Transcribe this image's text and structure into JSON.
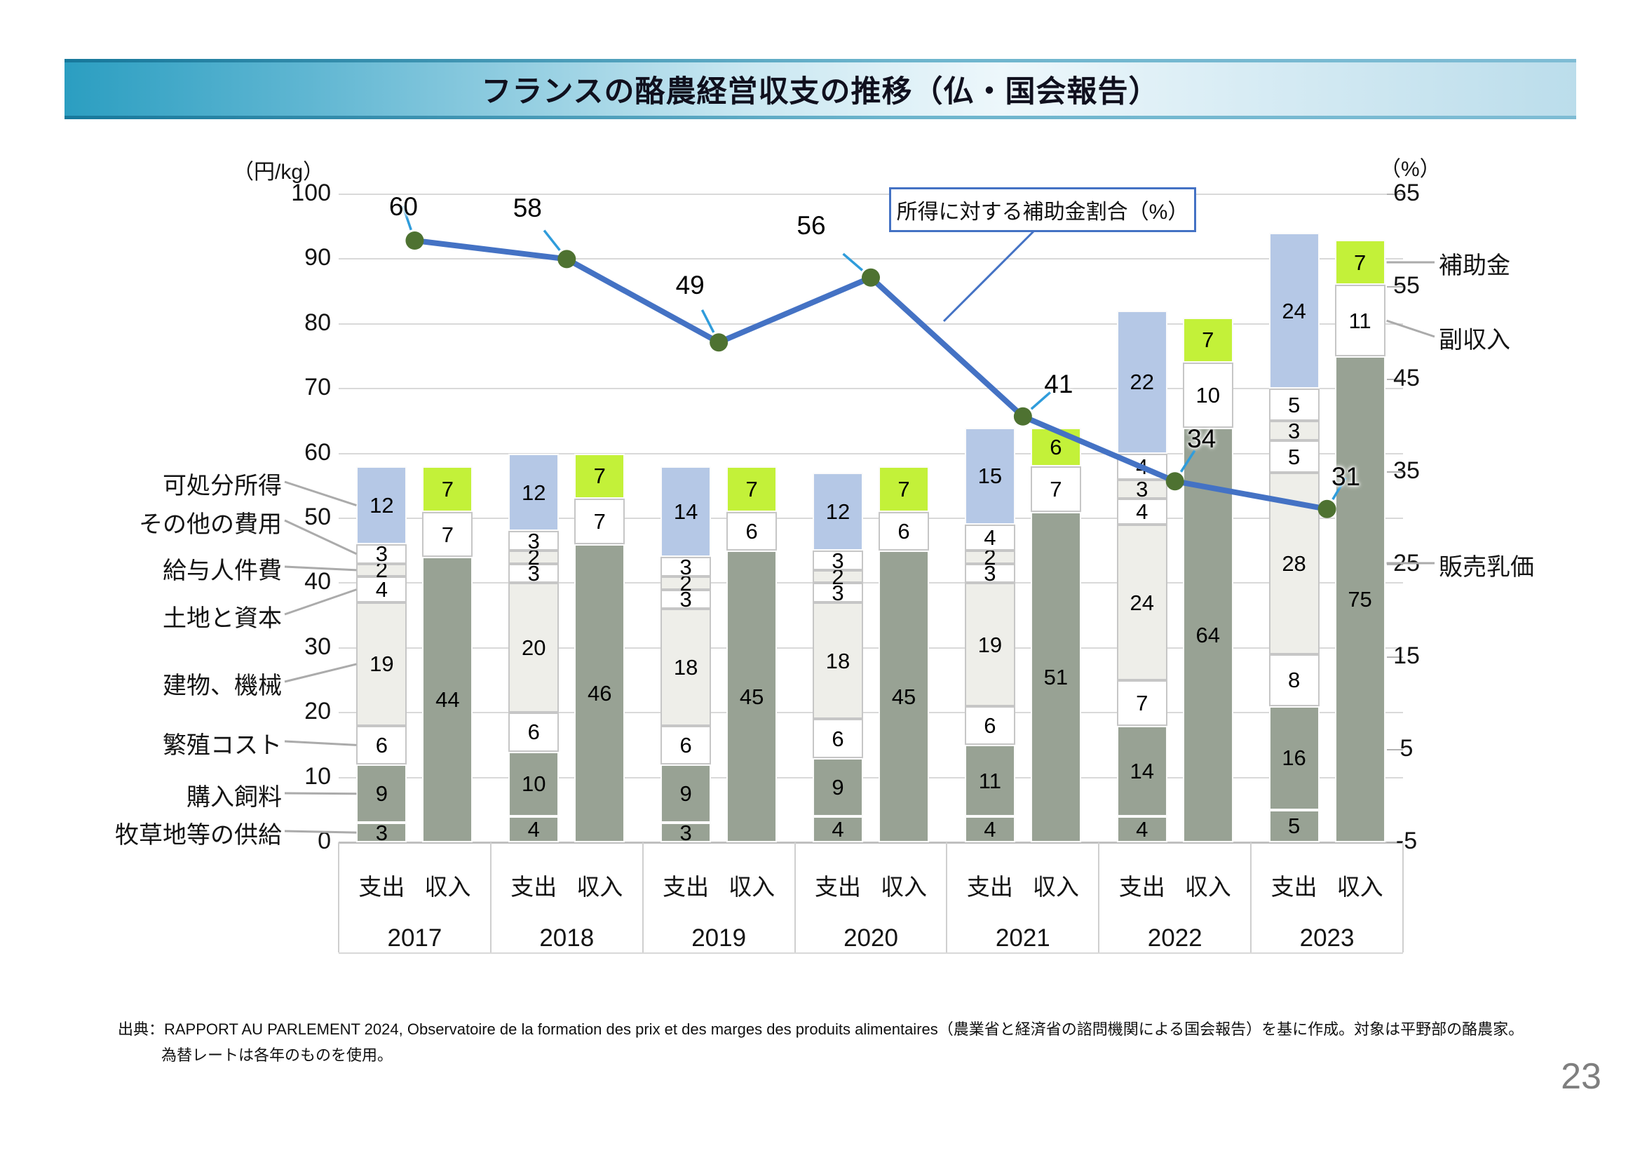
{
  "slide": {
    "title": "フランスの酪農経営収支の推移（仏・国会報告）",
    "page_number": "23",
    "source_line1": "出典：RAPPORT AU PARLEMENT 2024, Observatoire de la formation des prix et des marges des produits alimentaires（農業省と経済省の諮問機関による国会報告）を基に作成。対象は平野部の酪農家。",
    "source_line2": "為替レートは各年のものを使用。"
  },
  "chart_data": {
    "type": "bar",
    "subtype": "stacked-bars-with-line-overlay",
    "years": [
      "2017",
      "2018",
      "2019",
      "2020",
      "2021",
      "2022",
      "2023"
    ],
    "bar_pair_labels": [
      "支出",
      "収入"
    ],
    "left_axis": {
      "title": "（円/kg）",
      "min": 0,
      "max": 100,
      "step": 10
    },
    "right_axis": {
      "title": "（%）",
      "min": -5,
      "max": 65,
      "ticks": [
        65,
        55,
        45,
        35,
        25,
        15,
        5,
        -5
      ]
    },
    "expense_categories_bottom_to_top": [
      "牧草地等の供給",
      "購入飼料",
      "繁殖コスト",
      "建物、機械",
      "土地と資本",
      "給与人件費",
      "その他の費用",
      "可処分所得"
    ],
    "income_categories_bottom_to_top": [
      "販売乳価",
      "副収入",
      "補助金"
    ],
    "expense_values": {
      "2017": [
        3,
        9,
        6,
        19,
        4,
        2,
        3,
        12
      ],
      "2018": [
        4,
        10,
        6,
        20,
        3,
        2,
        3,
        12
      ],
      "2019": [
        3,
        9,
        6,
        18,
        3,
        2,
        3,
        14
      ],
      "2020": [
        4,
        9,
        6,
        18,
        3,
        2,
        3,
        12
      ],
      "2021": [
        4,
        11,
        6,
        19,
        3,
        2,
        4,
        15
      ],
      "2022": [
        4,
        14,
        7,
        24,
        4,
        3,
        4,
        22
      ],
      "2023": [
        5,
        16,
        8,
        28,
        5,
        3,
        5,
        24
      ]
    },
    "income_values": {
      "2017": [
        44,
        7,
        7
      ],
      "2018": [
        46,
        7,
        7
      ],
      "2019": [
        45,
        6,
        7
      ],
      "2020": [
        45,
        6,
        7
      ],
      "2021": [
        51,
        7,
        6
      ],
      "2022": [
        64,
        10,
        7
      ],
      "2023": [
        75,
        11,
        7
      ]
    },
    "line_series": {
      "label": "所得に対する補助金割合（%）",
      "axis": "right",
      "values": [
        60,
        58,
        49,
        56,
        41,
        34,
        31
      ]
    },
    "colors": {
      "expense_fill": [
        "#98a294",
        "#98a294",
        "#ffffff",
        "#eeeee9",
        "#ffffff",
        "#eeeee9",
        "#ffffff",
        "#b5c8e6"
      ],
      "expense_border": [
        "#fbfbfb",
        "#fbfbfb",
        "#c6c6c6",
        "#c6c6c6",
        "#c6c6c6",
        "#c6c6c6",
        "#c6c6c6",
        "#fbfbfb"
      ],
      "income_fill": [
        "#98a294",
        "#ffffff",
        "#c3f139"
      ],
      "income_border": [
        "#fbfbfb",
        "#c6c6c6",
        "#fbfbfb"
      ],
      "line": "#4472c4",
      "marker": "#4e7231",
      "label_leader": "#2f9cdb",
      "legend_leader": "#ababab",
      "gridline": "#d9d9d9"
    }
  }
}
